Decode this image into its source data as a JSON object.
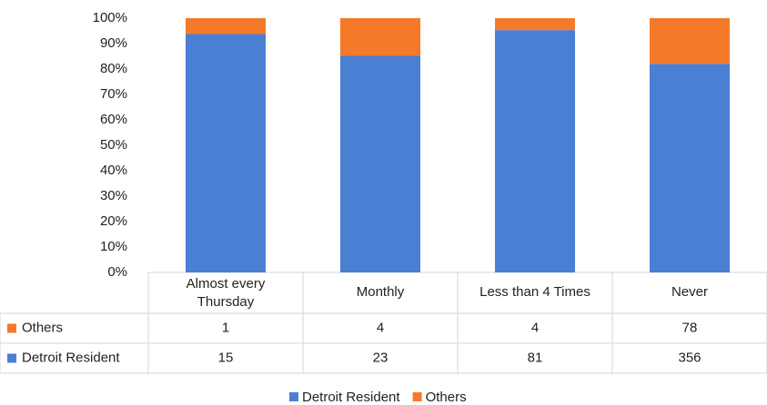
{
  "chart_data": {
    "type": "bar",
    "stacking": "percent",
    "categories": [
      "Almost every Thursday",
      "Monthly",
      "Less than 4 Times",
      "Never"
    ],
    "series": [
      {
        "name": "Detroit Resident",
        "color": "#4a7fd3",
        "values": [
          15,
          23,
          81,
          356
        ]
      },
      {
        "name": "Others",
        "color": "#f47a2a",
        "values": [
          1,
          4,
          4,
          78
        ]
      }
    ],
    "ylim": [
      0,
      100
    ],
    "yticks": [
      {
        "value": 0,
        "label": "0%"
      },
      {
        "value": 10,
        "label": "10%"
      },
      {
        "value": 20,
        "label": "20%"
      },
      {
        "value": 30,
        "label": "30%"
      },
      {
        "value": 40,
        "label": "40%"
      },
      {
        "value": 50,
        "label": "50%"
      },
      {
        "value": 60,
        "label": "60%"
      },
      {
        "value": 70,
        "label": "70%"
      },
      {
        "value": 80,
        "label": "80%"
      },
      {
        "value": 90,
        "label": "90%"
      },
      {
        "value": 100,
        "label": "100%"
      }
    ],
    "legend": "bottom",
    "data_table": true
  }
}
